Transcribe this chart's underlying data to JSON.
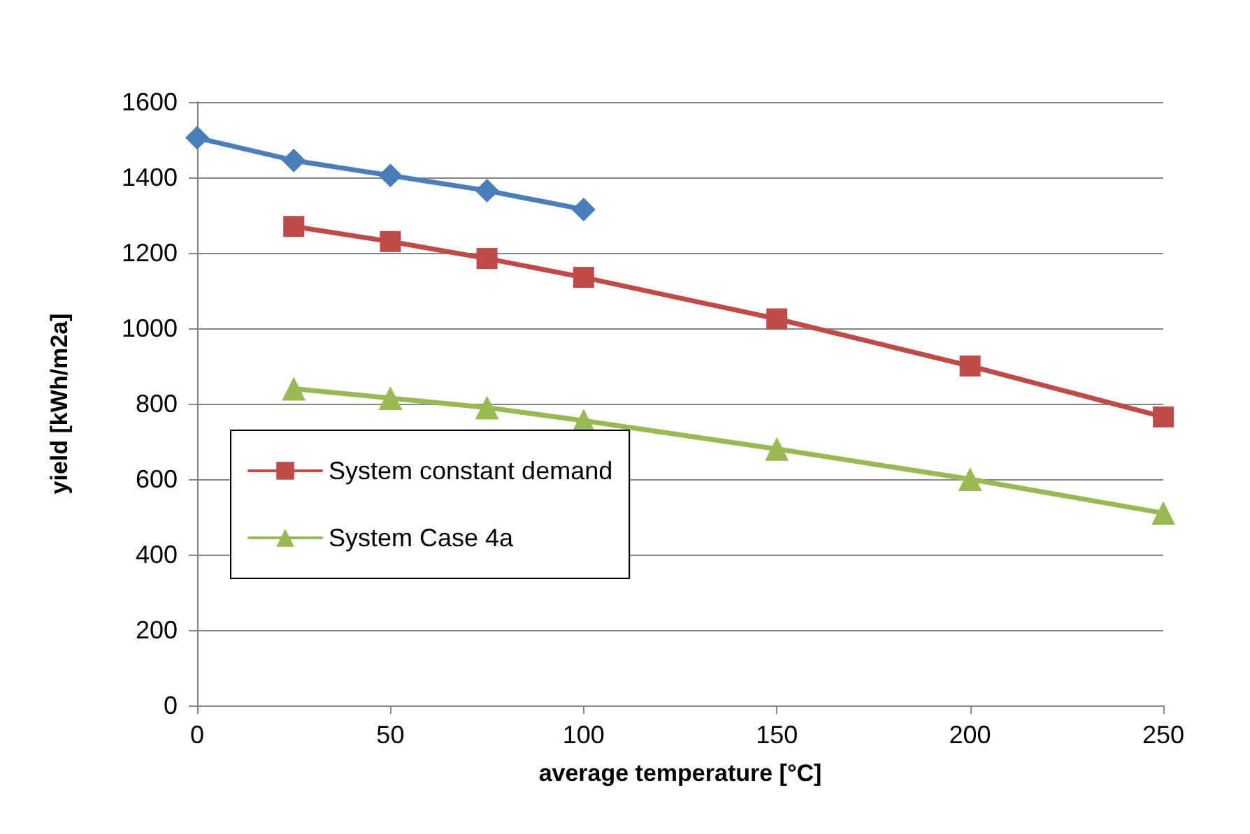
{
  "chart_data": {
    "type": "line",
    "xlabel": "average temperature [°C]",
    "ylabel": "yield [kWh/m2a]",
    "xlim": [
      0,
      250
    ],
    "xticks": [
      0,
      50,
      100,
      150,
      200,
      250
    ],
    "ylim": [
      0,
      1600
    ],
    "yticks": [
      0,
      200,
      400,
      600,
      800,
      1000,
      1200,
      1400,
      1600
    ],
    "grid": "y",
    "legend": "bottom left",
    "line_style": "solid",
    "series": [
      {
        "color": "#4a7ebb",
        "marker": "diamond",
        "x": [
          0,
          25,
          50,
          75,
          100
        ],
        "values": [
          1505,
          1445,
          1405,
          1365,
          1315
        ]
      },
      {
        "name": "System constant demand",
        "color": "#be4b48",
        "marker": "square",
        "x": [
          25,
          50,
          75,
          100,
          150,
          200,
          250
        ],
        "values": [
          1270,
          1230,
          1185,
          1135,
          1025,
          900,
          765
        ]
      },
      {
        "name": "System Case 4a",
        "color": "#98b954",
        "marker": "triangle",
        "x": [
          25,
          50,
          75,
          100,
          150,
          200,
          250
        ],
        "values": [
          840,
          815,
          790,
          755,
          680,
          600,
          510
        ]
      }
    ]
  }
}
